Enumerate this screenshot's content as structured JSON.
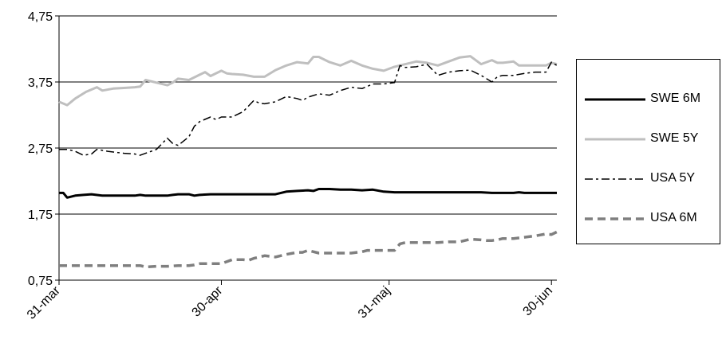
{
  "chart_data": {
    "type": "line",
    "title": "",
    "xlabel": "",
    "ylabel": "",
    "ylim": [
      0.75,
      4.75
    ],
    "yticks": [
      "0,75",
      "1,75",
      "2,75",
      "3,75",
      "4,75"
    ],
    "ytick_values": [
      0.75,
      1.75,
      2.75,
      3.75,
      4.75
    ],
    "xticks": [
      {
        "label": "31-mar",
        "day": 0
      },
      {
        "label": "30-apr",
        "day": 30
      },
      {
        "label": "31-maj",
        "day": 61
      },
      {
        "label": "30-jun",
        "day": 91
      }
    ],
    "xlim_days": [
      0,
      92
    ],
    "grid": "horizontal",
    "legend": "right",
    "series": [
      {
        "name": "SWE 6M",
        "color": "#000000",
        "style": "solid",
        "x": [
          0,
          0.8,
          1.5,
          3,
          4.5,
          6,
          8,
          10,
          12,
          14,
          15,
          16,
          18,
          20,
          21,
          22,
          23,
          24,
          25,
          26,
          28,
          30,
          32,
          34,
          36,
          38,
          40,
          42,
          44,
          46,
          47,
          48,
          50,
          52,
          54,
          56,
          58,
          60,
          62,
          64,
          66,
          68,
          70,
          72,
          74,
          76,
          78,
          80,
          82,
          84,
          85,
          86,
          88,
          90,
          92
        ],
        "y": [
          2.07,
          2.07,
          2.0,
          2.03,
          2.04,
          2.05,
          2.03,
          2.03,
          2.03,
          2.03,
          2.04,
          2.03,
          2.03,
          2.03,
          2.04,
          2.05,
          2.05,
          2.05,
          2.03,
          2.04,
          2.05,
          2.05,
          2.05,
          2.05,
          2.05,
          2.05,
          2.05,
          2.09,
          2.1,
          2.11,
          2.1,
          2.13,
          2.13,
          2.12,
          2.12,
          2.11,
          2.12,
          2.09,
          2.08,
          2.08,
          2.08,
          2.08,
          2.08,
          2.08,
          2.08,
          2.08,
          2.08,
          2.07,
          2.07,
          2.07,
          2.08,
          2.07,
          2.07,
          2.07,
          2.07
        ]
      },
      {
        "name": "SWE 5Y",
        "color": "#bfbfbf",
        "style": "solid",
        "x": [
          0,
          1.5,
          3,
          5,
          7,
          8,
          10,
          12,
          14,
          15,
          16,
          18,
          20,
          21,
          22,
          24,
          26,
          27,
          28,
          30,
          31,
          32,
          34,
          36,
          38,
          40,
          42,
          44,
          46,
          47,
          48,
          50,
          52,
          54,
          56,
          58,
          60,
          62,
          64,
          66,
          68,
          70,
          72,
          74,
          76,
          78,
          80,
          81,
          82,
          84,
          85,
          86,
          88,
          90,
          91,
          92
        ],
        "y": [
          3.45,
          3.4,
          3.5,
          3.6,
          3.67,
          3.62,
          3.65,
          3.66,
          3.67,
          3.68,
          3.78,
          3.74,
          3.7,
          3.74,
          3.8,
          3.78,
          3.86,
          3.9,
          3.84,
          3.92,
          3.88,
          3.87,
          3.86,
          3.83,
          3.83,
          3.93,
          4.0,
          4.05,
          4.03,
          4.13,
          4.13,
          4.05,
          4.0,
          4.07,
          4.0,
          3.95,
          3.92,
          3.98,
          4.02,
          4.06,
          4.04,
          4.0,
          4.06,
          4.12,
          4.14,
          4.02,
          4.08,
          4.04,
          4.04,
          4.06,
          4.0,
          4.0,
          4.0,
          4.0,
          4.04,
          4.02
        ]
      },
      {
        "name": "USA 5Y",
        "color": "#000000",
        "style": "dashdot",
        "x": [
          0,
          1.5,
          3,
          4.5,
          6,
          7,
          9,
          12,
          14,
          15,
          16,
          18,
          20,
          21,
          22,
          24,
          25,
          26,
          28,
          29,
          30,
          32,
          34,
          36,
          37,
          38,
          40,
          42,
          44,
          45,
          46,
          48,
          50,
          52,
          54,
          56,
          58,
          60,
          62,
          63,
          64,
          66,
          68,
          70,
          72,
          74,
          76,
          78,
          80,
          81,
          82,
          84,
          86,
          88,
          90,
          91,
          92
        ],
        "y": [
          2.73,
          2.73,
          2.7,
          2.64,
          2.66,
          2.73,
          2.7,
          2.67,
          2.66,
          2.64,
          2.67,
          2.73,
          2.9,
          2.82,
          2.79,
          2.92,
          3.08,
          3.15,
          3.22,
          3.18,
          3.22,
          3.22,
          3.3,
          3.47,
          3.43,
          3.42,
          3.45,
          3.53,
          3.5,
          3.47,
          3.52,
          3.57,
          3.55,
          3.62,
          3.67,
          3.65,
          3.72,
          3.72,
          3.74,
          4.0,
          3.97,
          3.98,
          4.02,
          3.85,
          3.9,
          3.92,
          3.93,
          3.85,
          3.75,
          3.83,
          3.85,
          3.85,
          3.88,
          3.9,
          3.9,
          4.05,
          4.0
        ]
      },
      {
        "name": "USA 6M",
        "color": "#7f7f7f",
        "style": "dashed",
        "x": [
          0,
          3,
          6,
          9,
          12,
          15,
          16,
          18,
          20,
          22,
          24,
          25,
          26,
          28,
          30,
          32,
          34,
          35,
          36,
          38,
          40,
          42,
          44,
          45,
          46,
          48,
          50,
          52,
          54,
          56,
          57,
          58,
          60,
          62,
          63,
          64,
          66,
          68,
          70,
          72,
          74,
          76,
          78,
          79,
          80,
          81,
          82,
          84,
          86,
          88,
          90,
          91,
          92
        ],
        "y": [
          0.97,
          0.97,
          0.97,
          0.97,
          0.97,
          0.97,
          0.95,
          0.96,
          0.96,
          0.97,
          0.97,
          0.98,
          1.0,
          1.0,
          1.0,
          1.06,
          1.06,
          1.05,
          1.08,
          1.12,
          1.1,
          1.14,
          1.17,
          1.17,
          1.2,
          1.16,
          1.16,
          1.16,
          1.16,
          1.18,
          1.2,
          1.2,
          1.2,
          1.2,
          1.3,
          1.32,
          1.32,
          1.32,
          1.32,
          1.33,
          1.33,
          1.37,
          1.36,
          1.35,
          1.35,
          1.36,
          1.38,
          1.38,
          1.4,
          1.42,
          1.45,
          1.44,
          1.48
        ]
      }
    ]
  }
}
